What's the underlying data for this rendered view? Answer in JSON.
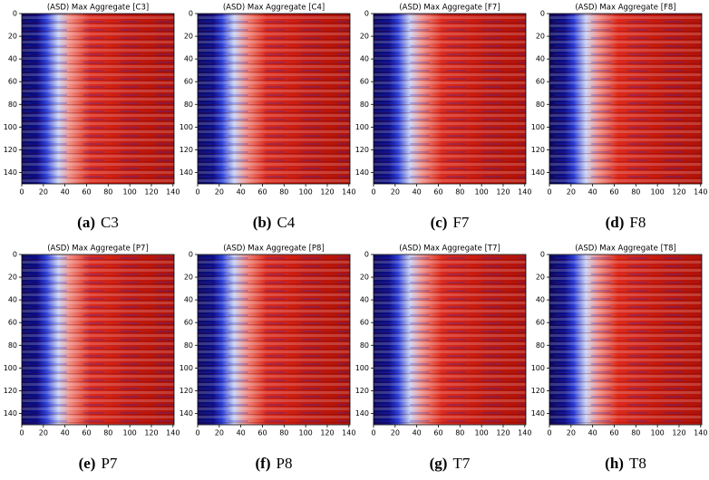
{
  "figures": [
    {
      "title": "(ASD) Max Aggregate [C3]",
      "label": "(a)",
      "name": "C3",
      "xlim": [
        0,
        141
      ],
      "ylim": [
        0,
        150
      ],
      "xticks": [
        0,
        20,
        40,
        60,
        80,
        100,
        120,
        140
      ],
      "yticks": [
        0,
        20,
        40,
        60,
        80,
        100,
        120,
        140
      ]
    },
    {
      "title": "(ASD) Max Aggregate [C4]",
      "label": "(b)",
      "name": "C4",
      "xlim": [
        0,
        141
      ],
      "ylim": [
        0,
        150
      ],
      "xticks": [
        0,
        20,
        40,
        60,
        80,
        100,
        120,
        140
      ],
      "yticks": [
        0,
        20,
        40,
        60,
        80,
        100,
        120,
        140
      ]
    },
    {
      "title": "(ASD) Max Aggregate [F7]",
      "label": "(c)",
      "name": "F7",
      "xlim": [
        0,
        141
      ],
      "ylim": [
        0,
        150
      ],
      "xticks": [
        0,
        20,
        40,
        60,
        80,
        100,
        120,
        140
      ],
      "yticks": [
        0,
        20,
        40,
        60,
        80,
        100,
        120,
        140
      ]
    },
    {
      "title": "(ASD) Max Aggregate [F8]",
      "label": "(d)",
      "name": "F8",
      "xlim": [
        0,
        141
      ],
      "ylim": [
        0,
        150
      ],
      "xticks": [
        0,
        20,
        40,
        60,
        80,
        100,
        120,
        140
      ],
      "yticks": [
        0,
        20,
        40,
        60,
        80,
        100,
        120,
        140
      ]
    },
    {
      "title": "(ASD) Max Aggregate [P7]",
      "label": "(e)",
      "name": "P7",
      "xlim": [
        0,
        141
      ],
      "ylim": [
        0,
        150
      ],
      "xticks": [
        0,
        20,
        40,
        60,
        80,
        100,
        120,
        140
      ],
      "yticks": [
        0,
        20,
        40,
        60,
        80,
        100,
        120,
        140
      ]
    },
    {
      "title": "(ASD) Max Aggregate [P8]",
      "label": "(f)",
      "name": "P8",
      "xlim": [
        0,
        141
      ],
      "ylim": [
        0,
        150
      ],
      "xticks": [
        0,
        20,
        40,
        60,
        80,
        100,
        120,
        140
      ],
      "yticks": [
        0,
        20,
        40,
        60,
        80,
        100,
        120,
        140
      ]
    },
    {
      "title": "(ASD) Max Aggregate [T7]",
      "label": "(g)",
      "name": "T7",
      "xlim": [
        0,
        141
      ],
      "ylim": [
        0,
        150
      ],
      "xticks": [
        0,
        20,
        40,
        60,
        80,
        100,
        120,
        140
      ],
      "yticks": [
        0,
        20,
        40,
        60,
        80,
        100,
        120,
        140
      ]
    },
    {
      "title": "(ASD) Max Aggregate [T8]",
      "label": "(h)",
      "name": "T8",
      "xlim": [
        0,
        141
      ],
      "ylim": [
        0,
        150
      ],
      "xticks": [
        0,
        20,
        40,
        60,
        80,
        100,
        120,
        140
      ],
      "yticks": [
        0,
        20,
        40,
        60,
        80,
        100,
        120,
        140
      ]
    }
  ]
}
